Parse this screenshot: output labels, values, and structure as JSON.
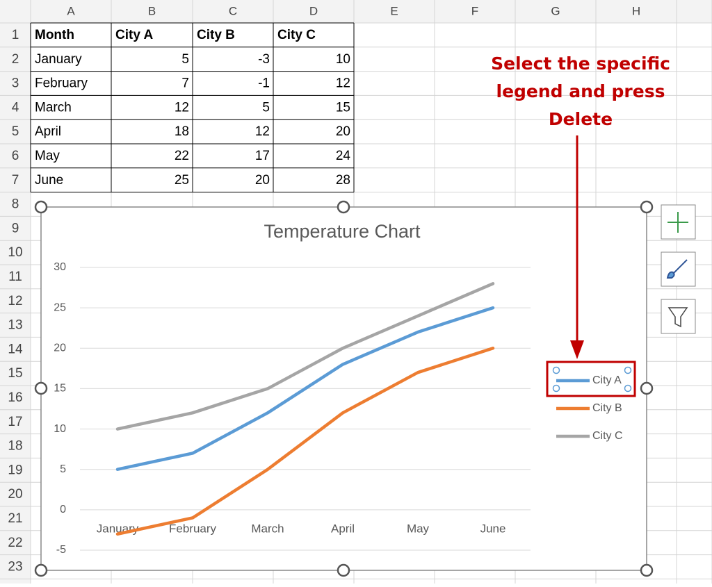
{
  "columns": [
    "A",
    "B",
    "C",
    "D",
    "E",
    "F",
    "G",
    "H"
  ],
  "row_headers": [
    1,
    2,
    3,
    4,
    5,
    6,
    7,
    8,
    9,
    10,
    11,
    12,
    13,
    14,
    15,
    16,
    17,
    18,
    19,
    20,
    21,
    22,
    23
  ],
  "table": {
    "header": [
      "Month",
      "City A",
      "City B",
      "City C"
    ],
    "rows": [
      [
        "January",
        5,
        -3,
        10
      ],
      [
        "February",
        7,
        -1,
        12
      ],
      [
        "March",
        12,
        5,
        15
      ],
      [
        "April",
        18,
        12,
        20
      ],
      [
        "May",
        22,
        17,
        24
      ],
      [
        "June",
        25,
        20,
        28
      ]
    ]
  },
  "annotation": "Select the specific legend and press Delete",
  "chart_data": {
    "type": "line",
    "title": "Temperature Chart",
    "categories": [
      "January",
      "February",
      "March",
      "April",
      "May",
      "June"
    ],
    "series": [
      {
        "name": "City A",
        "color": "#5b9bd5",
        "values": [
          5,
          7,
          12,
          18,
          22,
          25
        ]
      },
      {
        "name": "City B",
        "color": "#ed7d31",
        "values": [
          -3,
          -1,
          5,
          12,
          17,
          20
        ]
      },
      {
        "name": "City C",
        "color": "#a5a5a5",
        "values": [
          10,
          12,
          15,
          20,
          24,
          28
        ]
      }
    ],
    "ylim": [
      -5,
      30
    ],
    "yticks": [
      -5,
      0,
      5,
      10,
      15,
      20,
      25,
      30
    ],
    "grid": true,
    "legend": "right"
  }
}
